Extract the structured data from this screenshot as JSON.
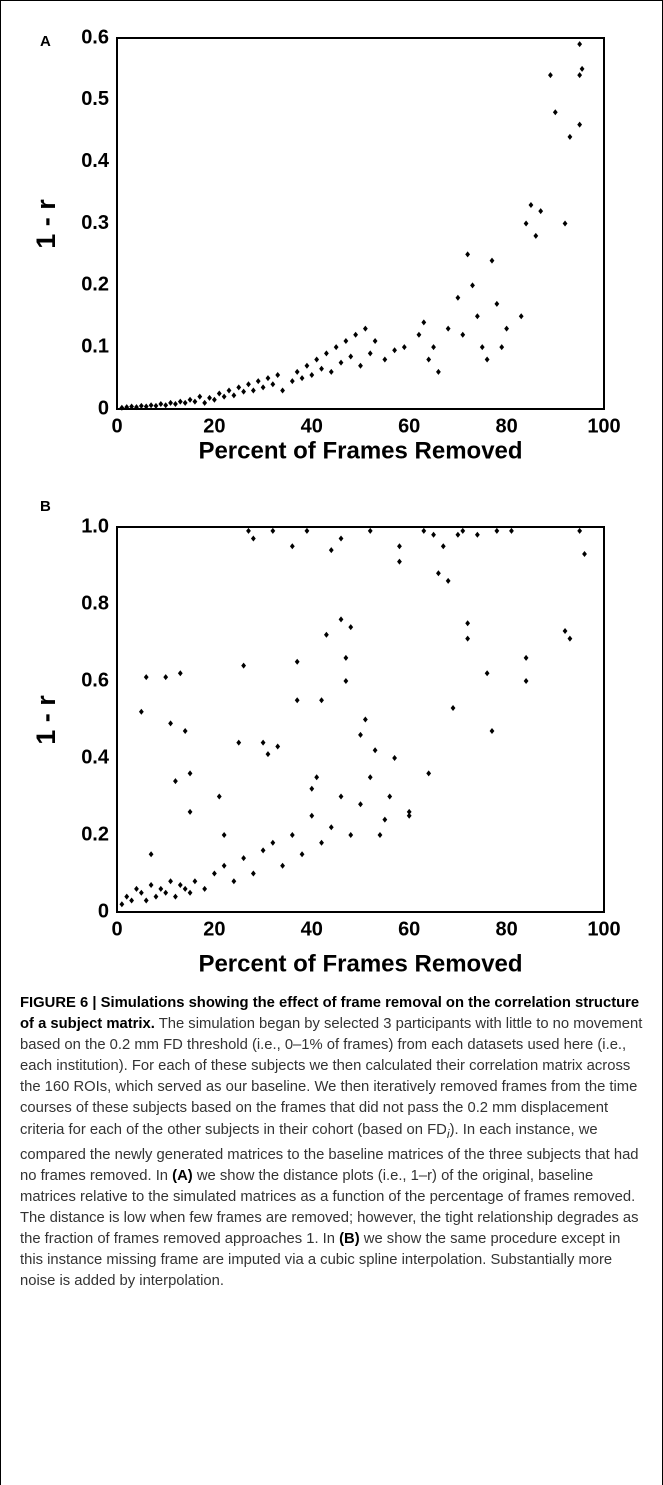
{
  "chart_data": [
    {
      "type": "scatter",
      "label": "A",
      "x_label": "Percent of Frames Removed",
      "y_label": "1 - r",
      "xlim": [
        0,
        100
      ],
      "xticks": [
        0,
        20,
        40,
        60,
        80,
        100
      ],
      "ylim": [
        0,
        0.6
      ],
      "yticks": [
        0,
        0.1,
        0.2,
        0.3,
        0.4,
        0.5,
        0.6
      ],
      "series": [
        {
          "color": "#000000",
          "x": [
            1,
            2,
            3,
            4,
            5,
            6,
            7,
            8,
            9,
            10,
            11,
            12,
            13,
            14,
            15,
            16,
            17,
            18,
            19,
            20,
            21,
            22,
            23,
            24,
            25,
            26,
            27,
            28,
            29,
            30,
            31,
            32,
            33,
            34,
            36,
            37,
            38,
            39,
            40,
            41,
            42,
            43,
            44,
            45,
            46,
            47,
            48,
            49,
            50,
            51,
            52,
            53,
            55,
            57,
            59,
            62,
            63,
            64,
            65,
            66,
            68,
            70,
            71,
            72,
            73,
            74,
            75,
            76,
            77,
            78,
            79,
            80,
            83,
            84,
            85,
            86,
            87,
            89,
            90,
            92,
            93,
            95,
            95.5,
            95,
            95
          ],
          "values": [
            0.002,
            0.003,
            0.004,
            0.003,
            0.005,
            0.004,
            0.006,
            0.005,
            0.008,
            0.006,
            0.01,
            0.008,
            0.012,
            0.01,
            0.015,
            0.012,
            0.02,
            0.01,
            0.018,
            0.015,
            0.025,
            0.02,
            0.03,
            0.022,
            0.035,
            0.028,
            0.04,
            0.03,
            0.045,
            0.035,
            0.05,
            0.04,
            0.055,
            0.03,
            0.045,
            0.06,
            0.05,
            0.07,
            0.055,
            0.08,
            0.065,
            0.09,
            0.06,
            0.1,
            0.075,
            0.11,
            0.085,
            0.12,
            0.07,
            0.13,
            0.09,
            0.11,
            0.08,
            0.095,
            0.1,
            0.12,
            0.14,
            0.08,
            0.1,
            0.06,
            0.13,
            0.18,
            0.12,
            0.25,
            0.2,
            0.15,
            0.1,
            0.08,
            0.24,
            0.17,
            0.1,
            0.13,
            0.15,
            0.3,
            0.33,
            0.28,
            0.32,
            0.54,
            0.48,
            0.3,
            0.44,
            0.59,
            0.55,
            0.46,
            0.54
          ]
        }
      ]
    },
    {
      "type": "scatter",
      "label": "B",
      "x_label": "Percent of Frames Removed",
      "y_label": "1 - r",
      "xlim": [
        0,
        100
      ],
      "xticks": [
        0,
        20,
        40,
        60,
        80,
        100
      ],
      "ylim": [
        0,
        1
      ],
      "yticks": [
        0,
        0.2,
        0.4,
        0.6,
        0.8,
        {
          "value": 1,
          "label": "1.0"
        }
      ],
      "series": [
        {
          "color": "#000000",
          "x": [
            1,
            2,
            3,
            4,
            5,
            6,
            7,
            8,
            9,
            10,
            11,
            12,
            13,
            14,
            15,
            16,
            18,
            20,
            22,
            24,
            26,
            28,
            30,
            32,
            34,
            36,
            38,
            40,
            42,
            44,
            46,
            48,
            50,
            52,
            54,
            55,
            56,
            60,
            5,
            6,
            7,
            10,
            11,
            12,
            13,
            14,
            15,
            15,
            21,
            22,
            25,
            26,
            27,
            28,
            30,
            31,
            32,
            33,
            36,
            37,
            37,
            39,
            40,
            41,
            42,
            43,
            44,
            46,
            46,
            47,
            47,
            48,
            50,
            51,
            52,
            53,
            57,
            58,
            58,
            60,
            63,
            64,
            65,
            66,
            67,
            68,
            69,
            70,
            71,
            72,
            72,
            74,
            76,
            77,
            78,
            81,
            84,
            84,
            92,
            93,
            95,
            96
          ],
          "values": [
            0.02,
            0.04,
            0.03,
            0.06,
            0.05,
            0.03,
            0.07,
            0.04,
            0.06,
            0.05,
            0.08,
            0.04,
            0.07,
            0.06,
            0.05,
            0.08,
            0.06,
            0.1,
            0.12,
            0.08,
            0.14,
            0.1,
            0.16,
            0.18,
            0.12,
            0.2,
            0.15,
            0.25,
            0.18,
            0.22,
            0.3,
            0.2,
            0.28,
            0.35,
            0.2,
            0.24,
            0.3,
            0.26,
            0.52,
            0.61,
            0.15,
            0.61,
            0.49,
            0.34,
            0.62,
            0.47,
            0.36,
            0.26,
            0.3,
            0.2,
            0.44,
            0.64,
            0.99,
            0.97,
            0.44,
            0.41,
            0.99,
            0.43,
            0.95,
            0.65,
            0.55,
            0.99,
            0.32,
            0.35,
            0.55,
            0.72,
            0.94,
            0.97,
            0.76,
            0.66,
            0.6,
            0.74,
            0.46,
            0.5,
            0.99,
            0.42,
            0.4,
            0.95,
            0.91,
            0.25,
            0.99,
            0.36,
            0.98,
            0.88,
            0.95,
            0.86,
            0.53,
            0.98,
            0.99,
            0.75,
            0.71,
            0.98,
            0.62,
            0.47,
            0.99,
            0.99,
            0.66,
            0.6,
            0.73,
            0.71,
            0.99,
            0.93
          ]
        }
      ]
    }
  ],
  "caption": {
    "heading": "FIGURE 6 | Simulations showing the effect of frame removal on the correlation structure of a subject matrix.",
    "body": [
      " The simulation began by selected 3 participants with little to no movement based on the 0.2 mm FD threshold (i.e., 0–1% of frames) from each datasets used here (i.e., each institution). For each of these subjects we then calculated their correlation matrix across the 160 ROIs, which served as our baseline. We then iteratively removed frames from the time courses of these subjects based on the frames that did not pass the 0.2 mm displacement criteria for each of the other subjects in their cohort (based on FD",
      "i",
      "). In each instance, we compared the newly generated matrices to the baseline matrices of the three subjects that had no frames removed. In ",
      "(A)",
      " we show the distance plots (i.e., 1–r) of the original, baseline matrices relative to the simulated matrices as a function of the percentage of frames removed. The distance is low when few frames are removed; however, the tight relationship degrades as the fraction of frames removed approaches 1. In ",
      "(B)",
      " we show the same procedure except in this instance missing frame are imputed via a cubic spline interpolation. Substantially more noise is added by interpolation."
    ]
  }
}
